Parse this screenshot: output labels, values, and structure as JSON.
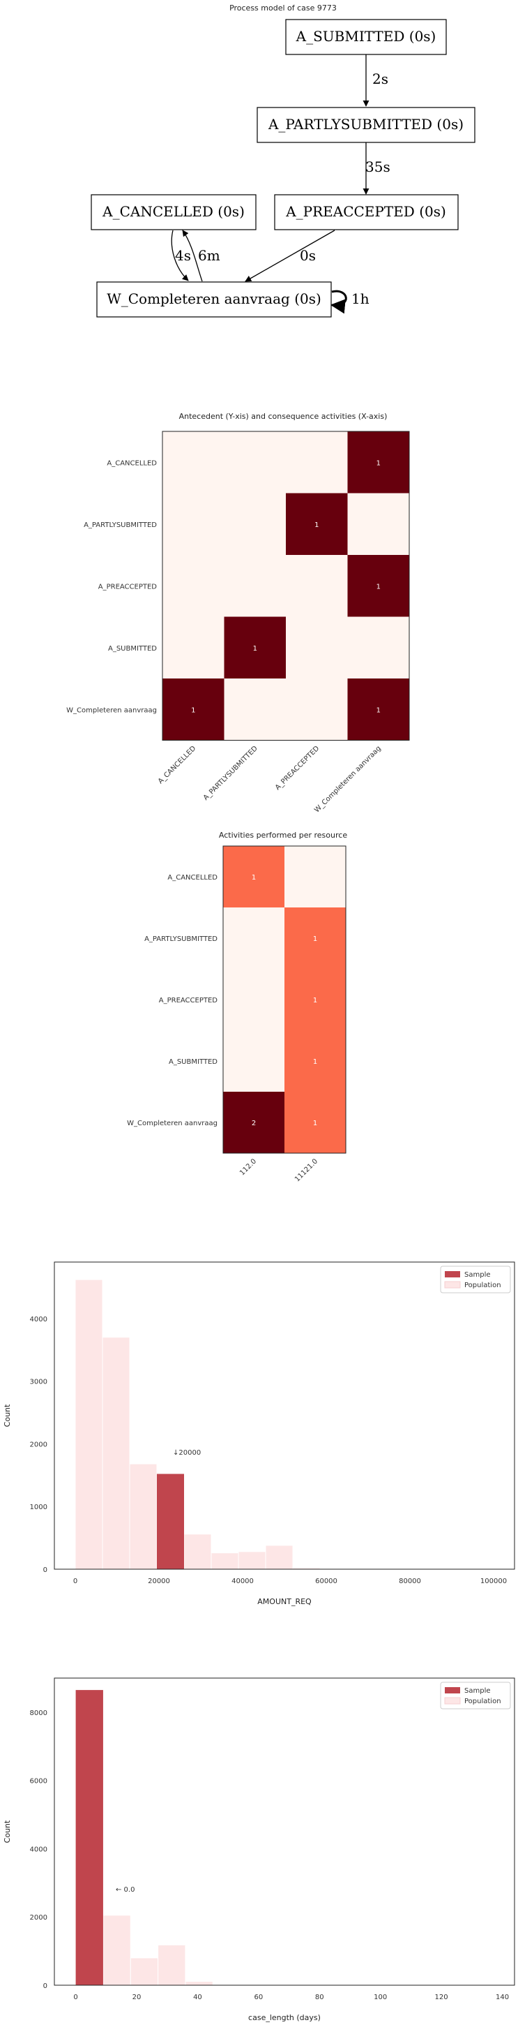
{
  "process_model": {
    "title": "Process model of case 9773",
    "nodes": [
      {
        "id": "sub",
        "label": "A_SUBMITTED (0s)"
      },
      {
        "id": "part",
        "label": "A_PARTLYSUBMITTED (0s)"
      },
      {
        "id": "canc",
        "label": "A_CANCELLED (0s)"
      },
      {
        "id": "pre",
        "label": "A_PREACCEPTED (0s)"
      },
      {
        "id": "wc",
        "label": "W_Completeren aanvraag (0s)"
      }
    ],
    "edges": [
      {
        "from": "sub",
        "to": "part",
        "label": "2s"
      },
      {
        "from": "part",
        "to": "pre",
        "label": "35s"
      },
      {
        "from": "canc",
        "to": "wc",
        "label": "4s"
      },
      {
        "from": "wc",
        "to": "canc",
        "label": "6m"
      },
      {
        "from": "pre",
        "to": "wc",
        "label": "0s"
      },
      {
        "from": "wc",
        "to": "wc",
        "label": "1h"
      }
    ]
  },
  "chart_data": [
    {
      "type": "heatmap",
      "title": "Antecedent (Y-xis) and consequence activities (X-axis)",
      "rows": [
        "A_CANCELLED",
        "A_PARTLYSUBMITTED",
        "A_PREACCEPTED",
        "A_SUBMITTED",
        "W_Completeren aanvraag"
      ],
      "cols": [
        "A_CANCELLED",
        "A_PARTLYSUBMITTED",
        "A_PREACCEPTED",
        "W_Completeren aanvraag"
      ],
      "values": [
        [
          0,
          0,
          0,
          1
        ],
        [
          0,
          0,
          1,
          0
        ],
        [
          0,
          0,
          0,
          1
        ],
        [
          0,
          1,
          0,
          0
        ],
        [
          1,
          0,
          0,
          1
        ]
      ],
      "colors": {
        "low": "#fff5f0",
        "high": "#67000d",
        "text": "#ffffff"
      }
    },
    {
      "type": "heatmap",
      "title": "Activities performed per resource",
      "rows": [
        "A_CANCELLED",
        "A_PARTLYSUBMITTED",
        "A_PREACCEPTED",
        "A_SUBMITTED",
        "W_Completeren aanvraag"
      ],
      "cols": [
        "112.0",
        "11121.0"
      ],
      "values": [
        [
          1,
          0
        ],
        [
          0,
          1
        ],
        [
          0,
          1
        ],
        [
          0,
          1
        ],
        [
          2,
          1
        ]
      ],
      "colors": {
        "low": "#fff5f0",
        "mid": "#fb6a4a",
        "high": "#67000d",
        "text": "#ffffff"
      }
    },
    {
      "type": "bar",
      "xlabel": "AMOUNT_REQ",
      "ylabel": "Count",
      "xlim": [
        -5000,
        105000
      ],
      "ylim": [
        0,
        4900
      ],
      "xticks": [
        "0",
        "20000",
        "40000",
        "60000",
        "80000",
        "100000"
      ],
      "yticks": [
        "0",
        "1000",
        "2000",
        "3000",
        "4000"
      ],
      "legend": {
        "position": "top-right",
        "items": [
          "Sample",
          "Population"
        ]
      },
      "annotation": "↓20000",
      "population_bins": [
        {
          "x0": 0,
          "x1": 6500,
          "value": 4620
        },
        {
          "x0": 6500,
          "x1": 13000,
          "value": 3700
        },
        {
          "x0": 13000,
          "x1": 19500,
          "value": 1680
        },
        {
          "x0": 19500,
          "x1": 26000,
          "value": 1520
        },
        {
          "x0": 26000,
          "x1": 32500,
          "value": 560
        },
        {
          "x0": 32500,
          "x1": 39000,
          "value": 260
        },
        {
          "x0": 39000,
          "x1": 45500,
          "value": 280
        },
        {
          "x0": 45500,
          "x1": 52000,
          "value": 380
        },
        {
          "x0": 52000,
          "x1": 58500,
          "value": 20
        },
        {
          "x0": 58500,
          "x1": 65000,
          "value": 10
        }
      ],
      "sample_bins": [
        {
          "x0": 19500,
          "x1": 26000,
          "value": 1520
        }
      ],
      "colors": {
        "sample": "#c0454d",
        "population": "#fde6e6",
        "population_edge": "#f6cfd0"
      }
    },
    {
      "type": "bar",
      "xlabel": "case_length (days)",
      "ylabel": "Count",
      "xlim": [
        -7,
        144
      ],
      "ylim": [
        0,
        9000
      ],
      "xticks": [
        "0",
        "20",
        "40",
        "60",
        "80",
        "100",
        "120",
        "140"
      ],
      "yticks": [
        "0",
        "2000",
        "4000",
        "6000",
        "8000"
      ],
      "legend": {
        "position": "top-right",
        "items": [
          "Sample",
          "Population"
        ]
      },
      "annotation": "← 0.0",
      "population_bins": [
        {
          "x0": 0,
          "x1": 9,
          "value": 8650
        },
        {
          "x0": 9,
          "x1": 18,
          "value": 2050
        },
        {
          "x0": 18,
          "x1": 27,
          "value": 800
        },
        {
          "x0": 27,
          "x1": 36,
          "value": 1180
        },
        {
          "x0": 36,
          "x1": 45,
          "value": 110
        }
      ],
      "sample_bins": [
        {
          "x0": 0,
          "x1": 9,
          "value": 8650
        }
      ],
      "colors": {
        "sample": "#c0454d",
        "population": "#fde6e6",
        "population_edge": "#f6cfd0"
      }
    }
  ]
}
